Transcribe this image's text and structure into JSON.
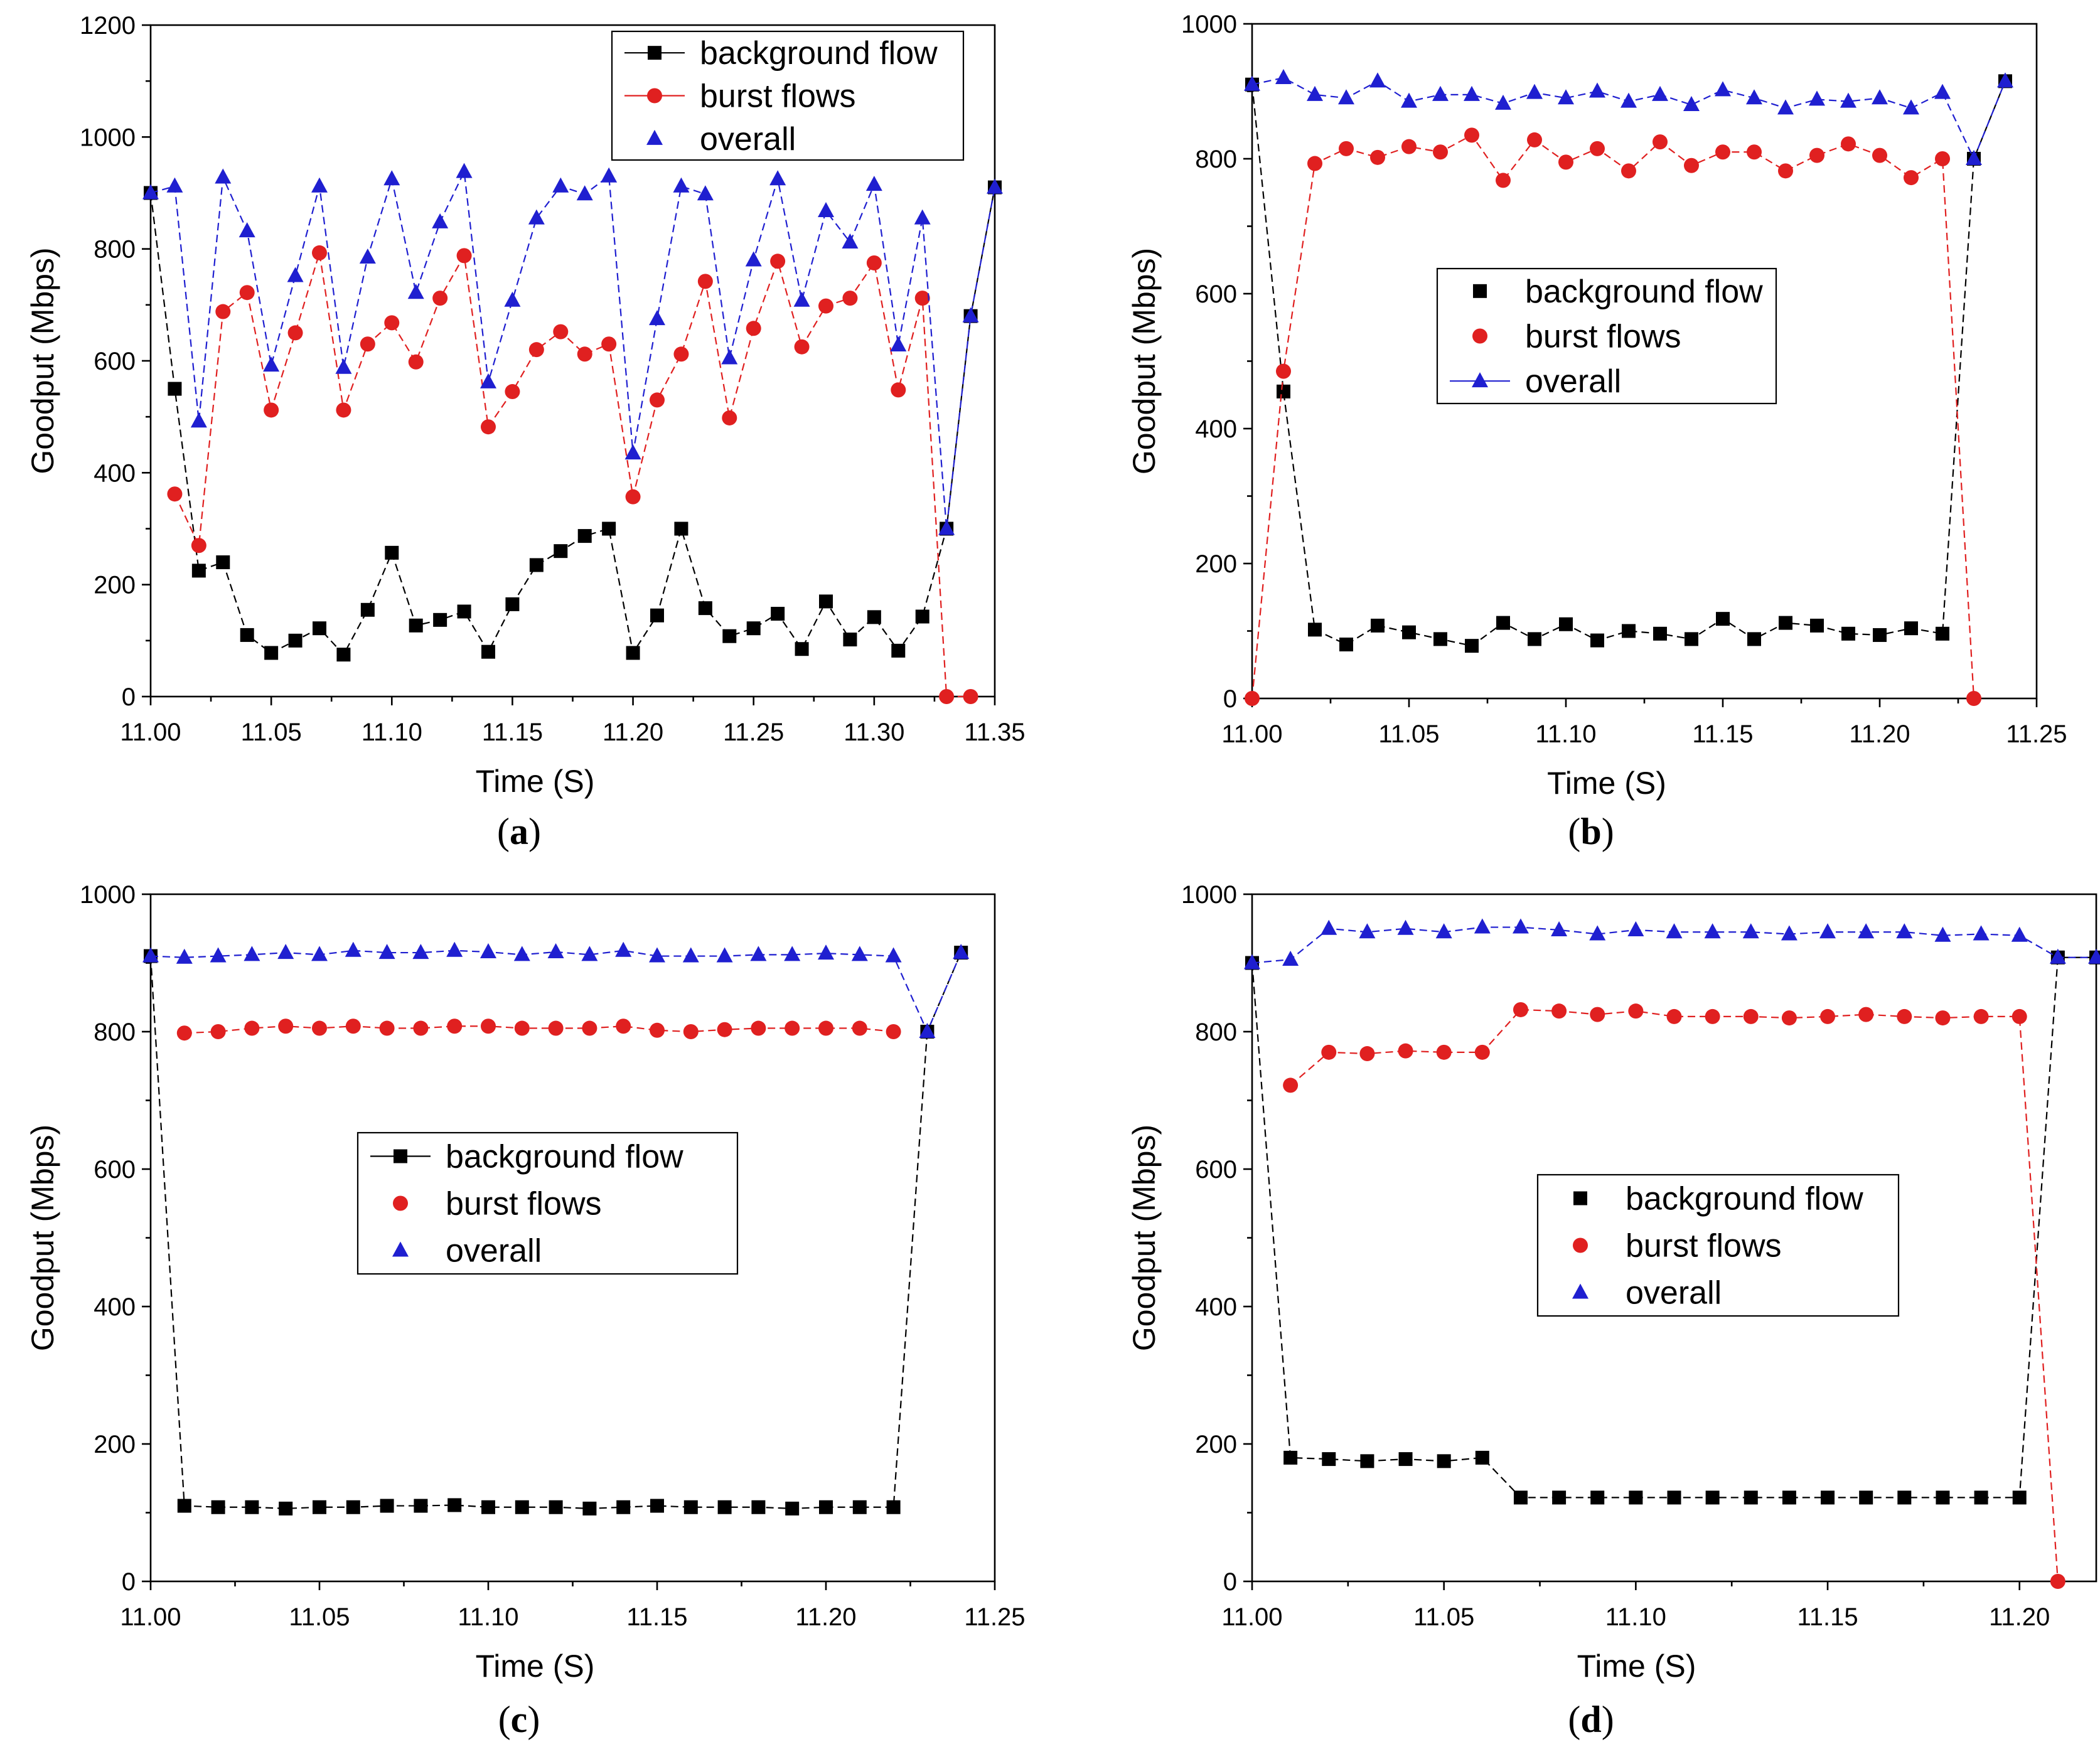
{
  "colors": {
    "background": "#000000",
    "burst": "#e02020",
    "overall": "#1f1fd0"
  },
  "chart_data": [
    {
      "type": "line",
      "caption_letter": "a",
      "xlabel": "Time (S)",
      "ylabel": "Goodput (Mbps)",
      "xlim": [
        11.0,
        11.35
      ],
      "ylim": [
        0,
        1200
      ],
      "xticks": [
        "11.00",
        "11.05",
        "11.10",
        "11.15",
        "11.20",
        "11.25",
        "11.30",
        "11.35"
      ],
      "yticks": [
        "0",
        "200",
        "400",
        "600",
        "800",
        "1000",
        "1200"
      ],
      "legend": {
        "position": "top-right",
        "entries": [
          "background flow",
          "burst flows",
          "overall"
        ]
      },
      "series": [
        {
          "name": "background flow",
          "marker": "square",
          "x": [
            11.0,
            11.01,
            11.02,
            11.03,
            11.04,
            11.05,
            11.06,
            11.07,
            11.08,
            11.09,
            11.1,
            11.11,
            11.12,
            11.13,
            11.14,
            11.15,
            11.16,
            11.17,
            11.18,
            11.19,
            11.2,
            11.21,
            11.22,
            11.23,
            11.24,
            11.25,
            11.26,
            11.27,
            11.28,
            11.29,
            11.3,
            11.31,
            11.32,
            11.33,
            11.34,
            11.35
          ],
          "values": [
            900,
            550,
            225,
            240,
            110,
            78,
            100,
            122,
            75,
            155,
            257,
            127,
            137,
            152,
            80,
            165,
            235,
            260,
            287,
            300,
            78,
            145,
            300,
            158,
            108,
            122,
            148,
            85,
            170,
            102,
            142,
            82,
            143,
            300,
            680,
            910
          ]
        },
        {
          "name": "burst flows",
          "marker": "circle",
          "x": [
            11.01,
            11.02,
            11.03,
            11.04,
            11.05,
            11.06,
            11.07,
            11.08,
            11.09,
            11.1,
            11.11,
            11.12,
            11.13,
            11.14,
            11.15,
            11.16,
            11.17,
            11.18,
            11.19,
            11.2,
            11.21,
            11.22,
            11.23,
            11.24,
            11.25,
            11.26,
            11.27,
            11.28,
            11.29,
            11.3,
            11.31,
            11.32,
            11.33,
            11.34
          ],
          "values": [
            362,
            270,
            688,
            722,
            512,
            650,
            793,
            512,
            630,
            668,
            598,
            712,
            788,
            482,
            545,
            620,
            652,
            612,
            630,
            357,
            530,
            612,
            742,
            498,
            658,
            778,
            625,
            698,
            712,
            775,
            548,
            712,
            0,
            0
          ]
        },
        {
          "name": "overall",
          "marker": "triangle",
          "x": [
            11.0,
            11.01,
            11.02,
            11.03,
            11.04,
            11.05,
            11.06,
            11.07,
            11.08,
            11.09,
            11.1,
            11.11,
            11.12,
            11.13,
            11.14,
            11.15,
            11.16,
            11.17,
            11.18,
            11.19,
            11.2,
            11.21,
            11.22,
            11.23,
            11.24,
            11.25,
            11.26,
            11.27,
            11.28,
            11.29,
            11.3,
            11.31,
            11.32,
            11.33,
            11.34,
            11.35
          ],
          "values": [
            900,
            912,
            492,
            928,
            832,
            592,
            752,
            912,
            588,
            785,
            925,
            722,
            848,
            938,
            562,
            708,
            855,
            912,
            898,
            930,
            435,
            675,
            912,
            898,
            605,
            780,
            925,
            708,
            868,
            812,
            915,
            628,
            855,
            300,
            680,
            910
          ]
        }
      ]
    },
    {
      "type": "line",
      "caption_letter": "b",
      "xlabel": "Time (S)",
      "ylabel": "Goodput (Mbps)",
      "xlim": [
        11.0,
        11.25
      ],
      "ylim": [
        0,
        1000
      ],
      "xticks": [
        "11.00",
        "11.05",
        "11.10",
        "11.15",
        "11.20",
        "11.25"
      ],
      "yticks": [
        "0",
        "200",
        "400",
        "600",
        "800",
        "1000"
      ],
      "legend": {
        "position": "center",
        "entries": [
          "background flow",
          "burst flows",
          "overall"
        ]
      },
      "series": [
        {
          "name": "background flow",
          "marker": "square",
          "x": [
            11.0,
            11.01,
            11.02,
            11.03,
            11.04,
            11.05,
            11.06,
            11.07,
            11.08,
            11.09,
            11.1,
            11.11,
            11.12,
            11.13,
            11.14,
            11.15,
            11.16,
            11.17,
            11.18,
            11.19,
            11.2,
            11.21,
            11.22,
            11.23,
            11.24
          ],
          "values": [
            910,
            455,
            102,
            80,
            108,
            98,
            88,
            78,
            112,
            88,
            110,
            86,
            100,
            96,
            88,
            118,
            88,
            112,
            108,
            96,
            94,
            104,
            96,
            800,
            915
          ]
        },
        {
          "name": "burst flows",
          "marker": "circle",
          "x": [
            11.0,
            11.01,
            11.02,
            11.03,
            11.04,
            11.05,
            11.06,
            11.07,
            11.08,
            11.09,
            11.1,
            11.11,
            11.12,
            11.13,
            11.14,
            11.15,
            11.16,
            11.17,
            11.18,
            11.19,
            11.2,
            11.21,
            11.22,
            11.23
          ],
          "values": [
            0,
            485,
            793,
            815,
            802,
            818,
            810,
            835,
            768,
            828,
            795,
            815,
            782,
            825,
            790,
            810,
            810,
            782,
            805,
            822,
            805,
            772,
            800,
            0
          ]
        },
        {
          "name": "overall",
          "marker": "triangle",
          "x": [
            11.0,
            11.01,
            11.02,
            11.03,
            11.04,
            11.05,
            11.06,
            11.07,
            11.08,
            11.09,
            11.1,
            11.11,
            11.12,
            11.13,
            11.14,
            11.15,
            11.16,
            11.17,
            11.18,
            11.19,
            11.2,
            11.21,
            11.22,
            11.23,
            11.24
          ],
          "values": [
            910,
            920,
            895,
            890,
            915,
            885,
            895,
            895,
            882,
            898,
            890,
            900,
            885,
            895,
            880,
            902,
            890,
            875,
            888,
            885,
            890,
            875,
            898,
            800,
            915
          ]
        }
      ]
    },
    {
      "type": "line",
      "caption_letter": "c",
      "xlabel": "Time (S)",
      "ylabel": "Goodput (Mbps)",
      "xlim": [
        11.0,
        11.25
      ],
      "ylim": [
        0,
        1000
      ],
      "xticks": [
        "11.00",
        "11.05",
        "11.10",
        "11.15",
        "11.20",
        "11.25"
      ],
      "yticks": [
        "0",
        "200",
        "400",
        "600",
        "800",
        "1000"
      ],
      "legend": {
        "position": "center",
        "entries": [
          "background flow",
          "burst flows",
          "overall"
        ]
      },
      "series": [
        {
          "name": "background flow",
          "marker": "square",
          "x": [
            11.0,
            11.01,
            11.02,
            11.03,
            11.04,
            11.05,
            11.06,
            11.07,
            11.08,
            11.09,
            11.1,
            11.11,
            11.12,
            11.13,
            11.14,
            11.15,
            11.16,
            11.17,
            11.18,
            11.19,
            11.2,
            11.21,
            11.22,
            11.23,
            11.24
          ],
          "values": [
            910,
            110,
            108,
            108,
            106,
            108,
            108,
            110,
            110,
            111,
            108,
            108,
            108,
            106,
            108,
            110,
            108,
            108,
            108,
            106,
            108,
            108,
            108,
            800,
            915
          ]
        },
        {
          "name": "burst flows",
          "marker": "circle",
          "x": [
            11.01,
            11.02,
            11.03,
            11.04,
            11.05,
            11.06,
            11.07,
            11.08,
            11.09,
            11.1,
            11.11,
            11.12,
            11.13,
            11.14,
            11.15,
            11.16,
            11.17,
            11.18,
            11.19,
            11.2,
            11.21,
            11.22
          ],
          "values": [
            798,
            800,
            805,
            808,
            805,
            808,
            805,
            805,
            808,
            808,
            805,
            805,
            805,
            808,
            802,
            800,
            803,
            805,
            805,
            805,
            805,
            800
          ]
        },
        {
          "name": "overall",
          "marker": "triangle",
          "x": [
            11.0,
            11.01,
            11.02,
            11.03,
            11.04,
            11.05,
            11.06,
            11.07,
            11.08,
            11.09,
            11.1,
            11.11,
            11.12,
            11.13,
            11.14,
            11.15,
            11.16,
            11.17,
            11.18,
            11.19,
            11.2,
            11.21,
            11.22,
            11.23,
            11.24
          ],
          "values": [
            910,
            908,
            910,
            912,
            915,
            912,
            918,
            915,
            915,
            918,
            916,
            912,
            916,
            912,
            918,
            910,
            910,
            910,
            912,
            912,
            914,
            912,
            910,
            800,
            915
          ]
        }
      ]
    },
    {
      "type": "line",
      "caption_letter": "d",
      "xlabel": "Time (S)",
      "ylabel": "Goodput (Mbps)",
      "xlim": [
        11.0,
        11.22
      ],
      "ylim": [
        0,
        1000
      ],
      "xticks": [
        "11.00",
        "11.05",
        "11.10",
        "11.15",
        "11.20"
      ],
      "yticks": [
        "0",
        "200",
        "400",
        "600",
        "800",
        "1000"
      ],
      "legend": {
        "position": "center-right",
        "entries": [
          "background flow",
          "burst flows",
          "overall"
        ]
      },
      "series": [
        {
          "name": "background flow",
          "marker": "square",
          "x": [
            11.0,
            11.01,
            11.02,
            11.03,
            11.04,
            11.05,
            11.06,
            11.07,
            11.08,
            11.09,
            11.1,
            11.11,
            11.12,
            11.13,
            11.14,
            11.15,
            11.16,
            11.17,
            11.18,
            11.19,
            11.2,
            11.21,
            11.22
          ],
          "values": [
            900,
            180,
            178,
            175,
            178,
            175,
            180,
            122,
            122,
            122,
            122,
            122,
            122,
            122,
            122,
            122,
            122,
            122,
            122,
            122,
            122,
            908,
            908
          ]
        },
        {
          "name": "burst flows",
          "marker": "circle",
          "x": [
            11.01,
            11.02,
            11.03,
            11.04,
            11.05,
            11.06,
            11.07,
            11.08,
            11.09,
            11.1,
            11.11,
            11.12,
            11.13,
            11.14,
            11.15,
            11.16,
            11.17,
            11.18,
            11.19,
            11.2,
            11.21
          ],
          "values": [
            722,
            770,
            768,
            772,
            770,
            770,
            832,
            830,
            825,
            830,
            822,
            822,
            822,
            820,
            822,
            825,
            822,
            820,
            822,
            822,
            0
          ]
        },
        {
          "name": "overall",
          "marker": "triangle",
          "x": [
            11.0,
            11.01,
            11.02,
            11.03,
            11.04,
            11.05,
            11.06,
            11.07,
            11.08,
            11.09,
            11.1,
            11.11,
            11.12,
            11.13,
            11.14,
            11.15,
            11.16,
            11.17,
            11.18,
            11.19,
            11.2,
            11.21,
            11.22
          ],
          "values": [
            900,
            905,
            950,
            945,
            950,
            945,
            952,
            952,
            948,
            942,
            948,
            945,
            945,
            945,
            942,
            945,
            945,
            945,
            940,
            942,
            940,
            908,
            908
          ]
        }
      ]
    }
  ]
}
